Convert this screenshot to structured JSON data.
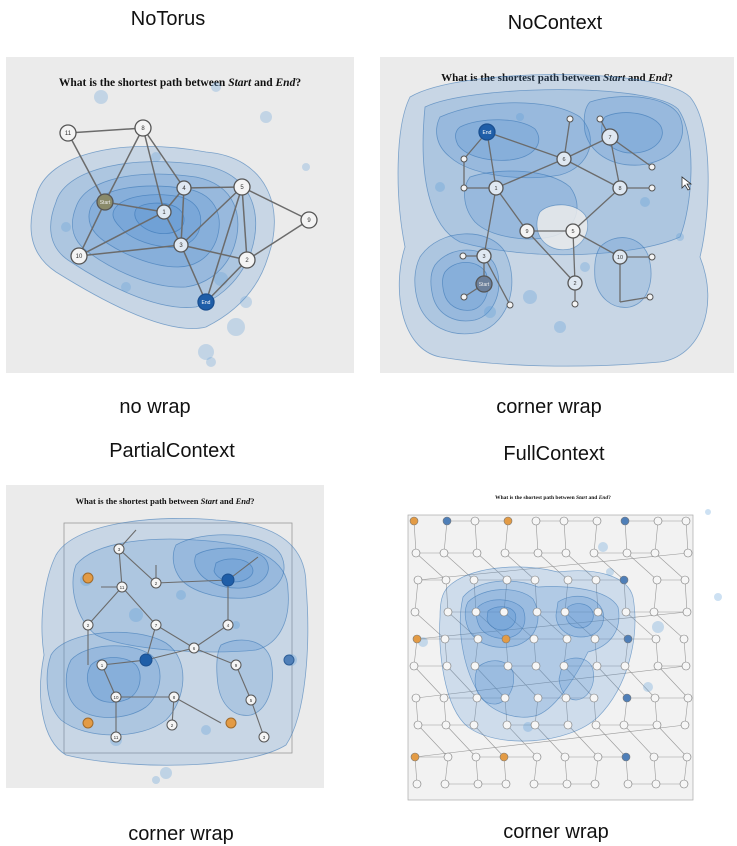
{
  "panels": [
    {
      "id": "notorus",
      "title": "NoTorus",
      "caption": "no wrap",
      "question": {
        "before": "What is the shortest path between ",
        "start": "Start",
        "middle": " and ",
        "end": "End",
        "after": "?"
      },
      "labels": {
        "start_node": "Start",
        "end_node": "End"
      }
    },
    {
      "id": "nocontext",
      "title": "NoContext",
      "caption": "corner wrap",
      "question": {
        "before": "What is the shortest path between ",
        "start": "Start",
        "middle": " and ",
        "end": "End",
        "after": "?"
      },
      "labels": {
        "start_node": "Start",
        "end_node": "End"
      }
    },
    {
      "id": "partialcontext",
      "title": "PartialContext",
      "caption": "corner wrap",
      "question": {
        "before": "What is the shortest path between ",
        "start": "Start",
        "middle": " and ",
        "end": "End",
        "after": "?"
      }
    },
    {
      "id": "fullcontext",
      "title": "FullContext",
      "caption": "corner wrap",
      "question": {
        "before": "What is the shortest path between ",
        "start": "Start",
        "middle": " and ",
        "end": "End",
        "after": "?"
      }
    }
  ],
  "colors": {
    "panel_bg": "#ebebeb",
    "heat_fill": "#4f8fd0",
    "heat_stroke": "#2f6fb0",
    "node_dark": "#1f5ea8",
    "node_orange": "#e39b45",
    "edge": "#666666"
  }
}
